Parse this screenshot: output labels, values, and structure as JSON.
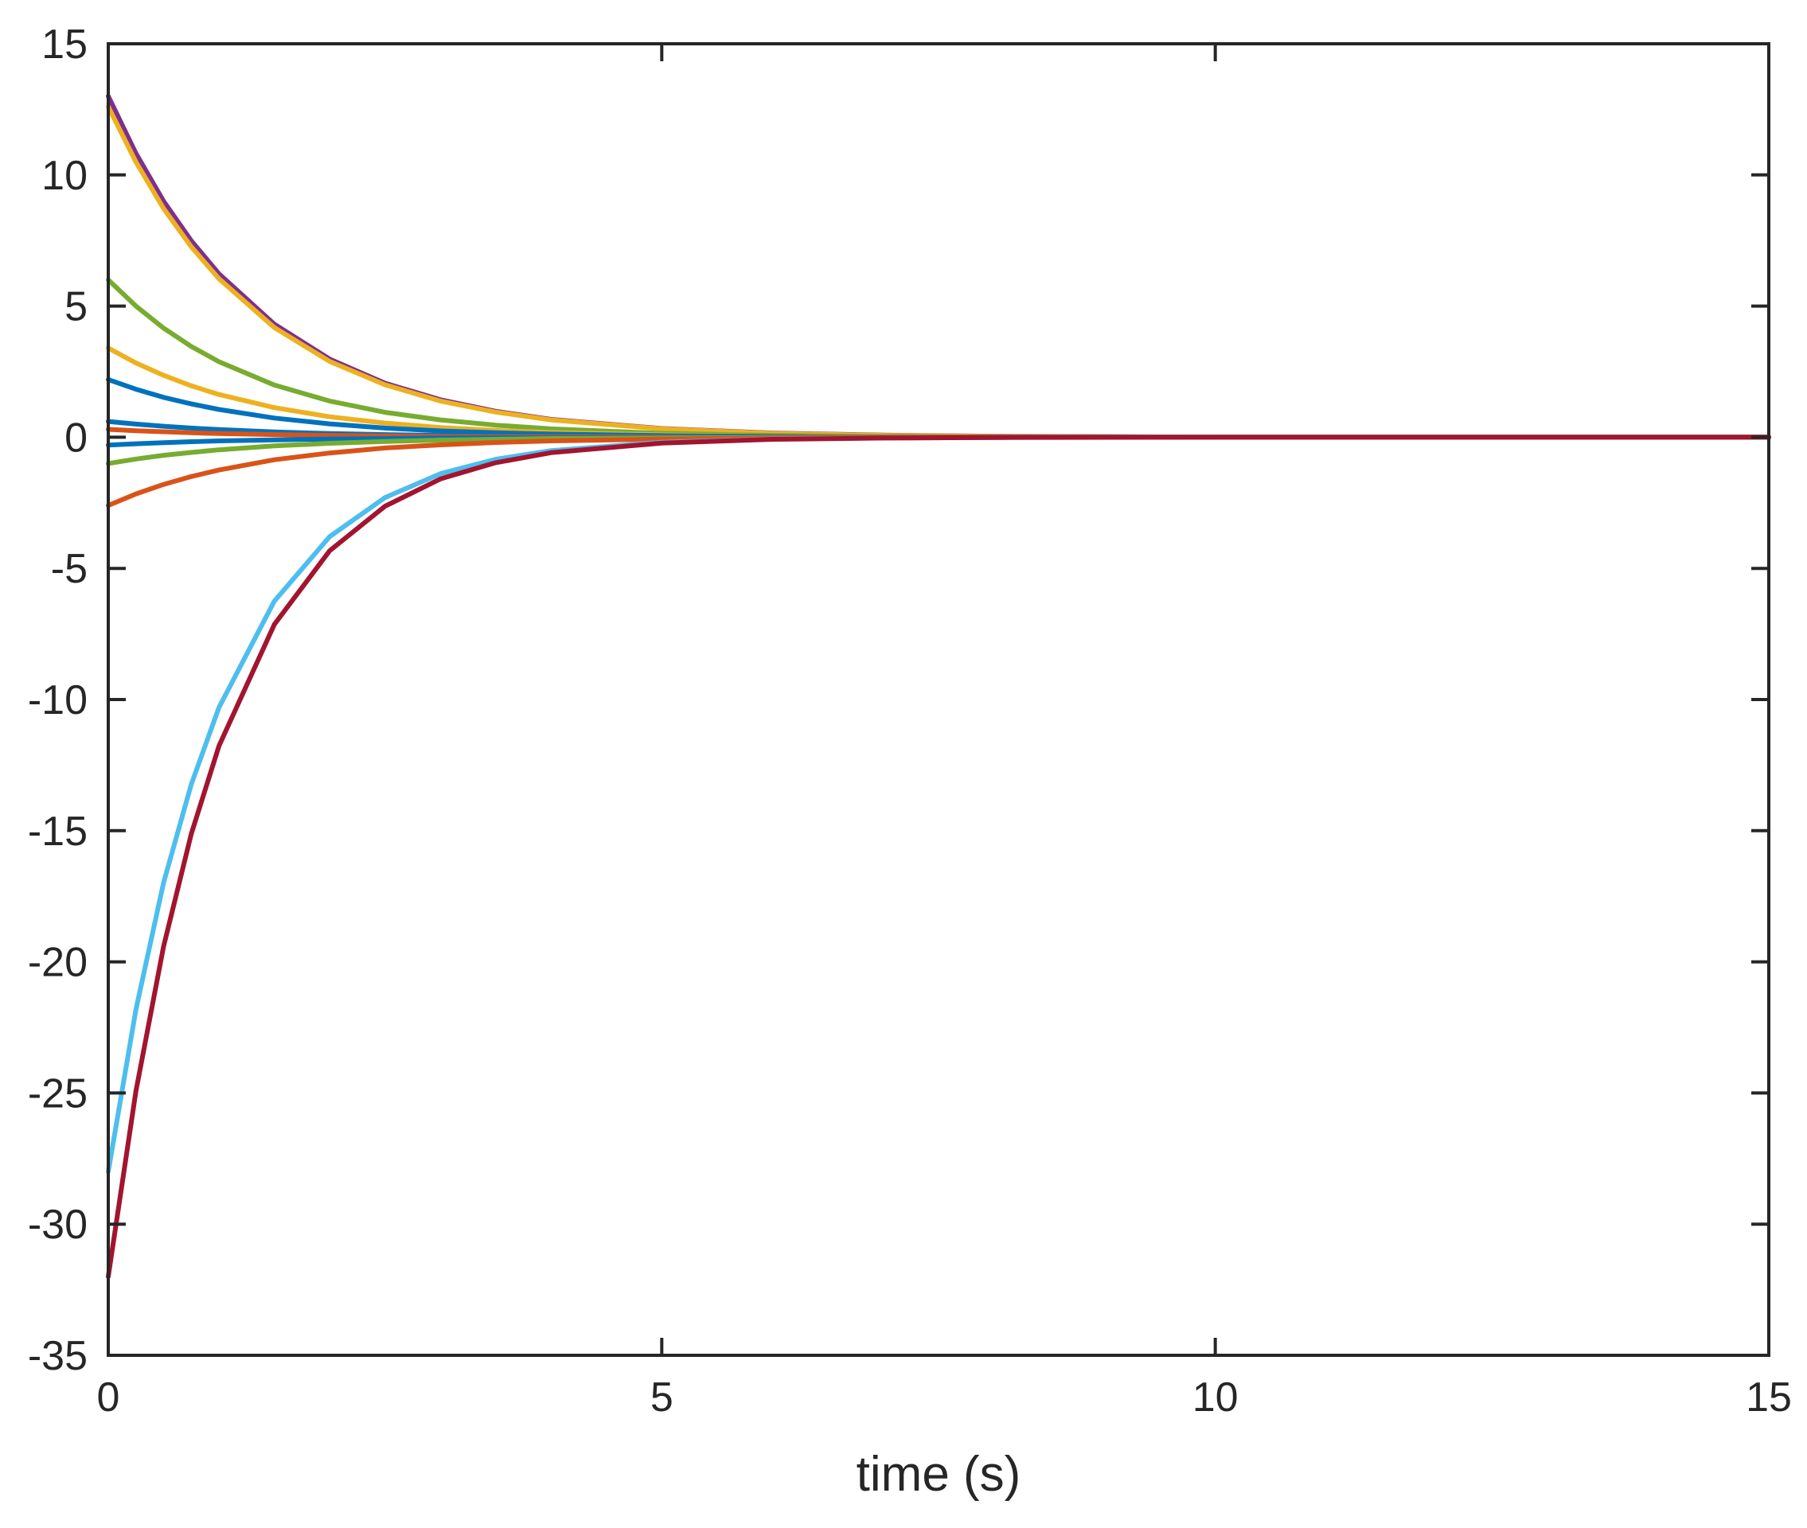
{
  "chart_data": {
    "type": "line",
    "title": "",
    "xlabel": "time (s)",
    "ylabel": "",
    "xlim": [
      0,
      15
    ],
    "ylim": [
      -35,
      15
    ],
    "xticks": [
      0,
      5,
      10,
      15
    ],
    "xtick_labels": [
      "0",
      "5",
      "10",
      "15"
    ],
    "yticks": [
      15,
      10,
      5,
      0,
      -5,
      -10,
      -15,
      -20,
      -25,
      -30,
      -35
    ],
    "ytick_labels": [
      "15",
      "10",
      "5",
      "0",
      "-5",
      "-10",
      "-15",
      "-20",
      "-25",
      "-30",
      "-35"
    ],
    "grid": false,
    "legend": "none",
    "x": [
      0,
      0.25,
      0.5,
      0.75,
      1,
      1.5,
      2,
      2.5,
      3,
      3.5,
      4,
      5,
      6,
      7,
      8,
      10,
      12,
      15
    ],
    "series": [
      {
        "color": "#7E2F8E",
        "values": [
          13.0,
          10.82,
          9.0,
          7.49,
          6.23,
          4.31,
          2.98,
          2.06,
          1.43,
          0.99,
          0.68,
          0.33,
          0.16,
          0.08,
          0.04,
          0.0,
          0.0,
          0.0
        ]
      },
      {
        "color": "#EDB120",
        "values": [
          12.6,
          10.49,
          8.72,
          7.26,
          6.04,
          4.18,
          2.89,
          2.0,
          1.38,
          0.96,
          0.66,
          0.32,
          0.15,
          0.07,
          0.03,
          0.0,
          0.0,
          0.0
        ]
      },
      {
        "color": "#77AC30",
        "values": [
          6.0,
          5.0,
          4.16,
          3.46,
          2.88,
          1.99,
          1.38,
          0.95,
          0.66,
          0.46,
          0.32,
          0.15,
          0.07,
          0.03,
          0.01,
          0.0,
          0.0,
          0.0
        ]
      },
      {
        "color": "#EDB120",
        "values": [
          3.4,
          2.83,
          2.36,
          1.96,
          1.63,
          1.13,
          0.78,
          0.54,
          0.37,
          0.26,
          0.18,
          0.09,
          0.04,
          0.02,
          0.01,
          0.0,
          0.0,
          0.0
        ]
      },
      {
        "color": "#0072BD",
        "values": [
          2.2,
          1.83,
          1.52,
          1.27,
          1.06,
          0.73,
          0.51,
          0.35,
          0.24,
          0.17,
          0.12,
          0.06,
          0.03,
          0.01,
          0.0,
          0.0,
          0.0,
          0.0
        ]
      },
      {
        "color": "#0072BD",
        "values": [
          0.6,
          0.5,
          0.42,
          0.35,
          0.29,
          0.2,
          0.14,
          0.1,
          0.07,
          0.05,
          0.03,
          0.02,
          0.01,
          0.0,
          0.0,
          0.0,
          0.0,
          0.0
        ]
      },
      {
        "color": "#D95319",
        "values": [
          0.3,
          0.25,
          0.21,
          0.17,
          0.14,
          0.1,
          0.07,
          0.05,
          0.03,
          0.02,
          0.02,
          0.01,
          0.0,
          0.0,
          0.0,
          0.0,
          0.0,
          0.0
        ]
      },
      {
        "color": "#0072BD",
        "values": [
          -0.3,
          -0.25,
          -0.21,
          -0.17,
          -0.14,
          -0.1,
          -0.07,
          -0.05,
          -0.03,
          -0.02,
          -0.02,
          -0.01,
          0.0,
          0.0,
          0.0,
          0.0,
          0.0,
          0.0
        ]
      },
      {
        "color": "#77AC30",
        "values": [
          -1.0,
          -0.83,
          -0.69,
          -0.58,
          -0.48,
          -0.33,
          -0.23,
          -0.16,
          -0.11,
          -0.08,
          -0.05,
          -0.03,
          -0.01,
          0.0,
          0.0,
          0.0,
          0.0,
          0.0
        ]
      },
      {
        "color": "#D95319",
        "values": [
          -2.6,
          -2.16,
          -1.8,
          -1.5,
          -1.25,
          -0.86,
          -0.6,
          -0.41,
          -0.29,
          -0.2,
          -0.14,
          -0.07,
          -0.03,
          -0.01,
          0.0,
          0.0,
          0.0,
          0.0
        ]
      },
      {
        "color": "#4DBEEE",
        "values": [
          -28.0,
          -21.81,
          -16.98,
          -13.23,
          -10.3,
          -6.25,
          -3.79,
          -2.3,
          -1.39,
          -0.84,
          -0.51,
          -0.19,
          -0.07,
          -0.03,
          -0.01,
          0.0,
          0.0,
          0.0
        ]
      },
      {
        "color": "#A2142F",
        "values": [
          -32.0,
          -24.92,
          -19.41,
          -15.12,
          -11.77,
          -7.14,
          -4.33,
          -2.63,
          -1.59,
          -0.97,
          -0.59,
          -0.22,
          -0.08,
          -0.03,
          -0.01,
          0.0,
          0.0,
          0.0
        ]
      }
    ]
  }
}
